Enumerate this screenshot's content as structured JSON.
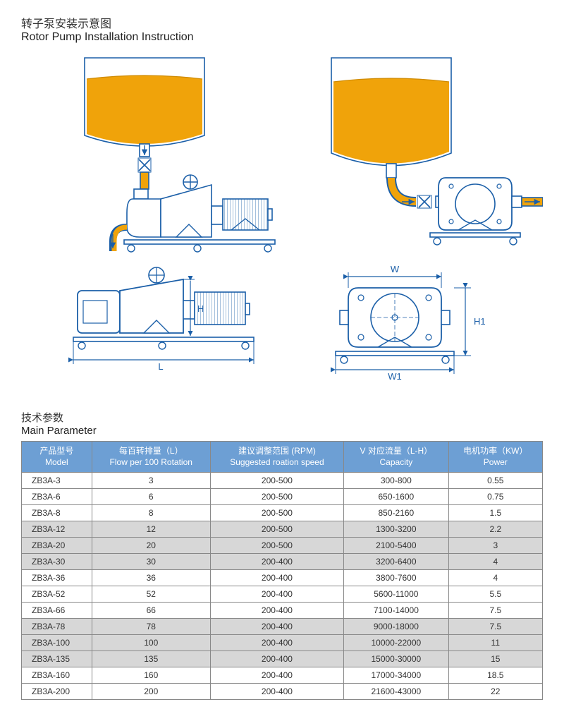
{
  "header": {
    "title_cn": "转子泵安装示意图",
    "title_en": "Rotor Pump Installation Instruction"
  },
  "param_section": {
    "title_cn": "技术参数",
    "title_en": "Main Parameter"
  },
  "diagram": {
    "stroke": "#1b5fa8",
    "stroke_width": 1.6,
    "fluid_color": "#f0a30a",
    "bg": "#ffffff",
    "dim_labels": {
      "L": "L",
      "H": "H",
      "W": "W",
      "W1": "W1",
      "H1": "H1"
    }
  },
  "table": {
    "header_bg": "#6d9fd4",
    "header_fg": "#ffffff",
    "shade_bg": "#d7d7d7",
    "columns": [
      {
        "cn": "产品型号",
        "en": "Model"
      },
      {
        "cn": "每百转排量（L）",
        "en": "Flow per 100 Rotation"
      },
      {
        "cn": "建议调整范围 (RPM)",
        "en": "Suggested roation speed"
      },
      {
        "cn": "V 对应流量（L-H）",
        "en": "Capacity"
      },
      {
        "cn": "电机功率（KW）",
        "en": "Power"
      }
    ],
    "groups": [
      {
        "shade": false,
        "rows": [
          [
            "ZB3A-3",
            "3",
            "200-500",
            "300-800",
            "0.55"
          ],
          [
            "ZB3A-6",
            "6",
            "200-500",
            "650-1600",
            "0.75"
          ],
          [
            "ZB3A-8",
            "8",
            "200-500",
            "850-2160",
            "1.5"
          ]
        ]
      },
      {
        "shade": true,
        "rows": [
          [
            "ZB3A-12",
            "12",
            "200-500",
            "1300-3200",
            "2.2"
          ],
          [
            "ZB3A-20",
            "20",
            "200-500",
            "2100-5400",
            "3"
          ],
          [
            "ZB3A-30",
            "30",
            "200-400",
            "3200-6400",
            "4"
          ]
        ]
      },
      {
        "shade": false,
        "rows": [
          [
            "ZB3A-36",
            "36",
            "200-400",
            "3800-7600",
            "4"
          ],
          [
            "ZB3A-52",
            "52",
            "200-400",
            "5600-11000",
            "5.5"
          ],
          [
            "ZB3A-66",
            "66",
            "200-400",
            "7100-14000",
            "7.5"
          ]
        ]
      },
      {
        "shade": true,
        "rows": [
          [
            "ZB3A-78",
            "78",
            "200-400",
            "9000-18000",
            "7.5"
          ],
          [
            "ZB3A-100",
            "100",
            "200-400",
            "10000-22000",
            "11"
          ],
          [
            "ZB3A-135",
            "135",
            "200-400",
            "15000-30000",
            "15"
          ]
        ]
      },
      {
        "shade": false,
        "rows": [
          [
            "ZB3A-160",
            "160",
            "200-400",
            "17000-34000",
            "18.5"
          ],
          [
            "ZB3A-200",
            "200",
            "200-400",
            "21600-43000",
            "22"
          ]
        ]
      }
    ]
  }
}
